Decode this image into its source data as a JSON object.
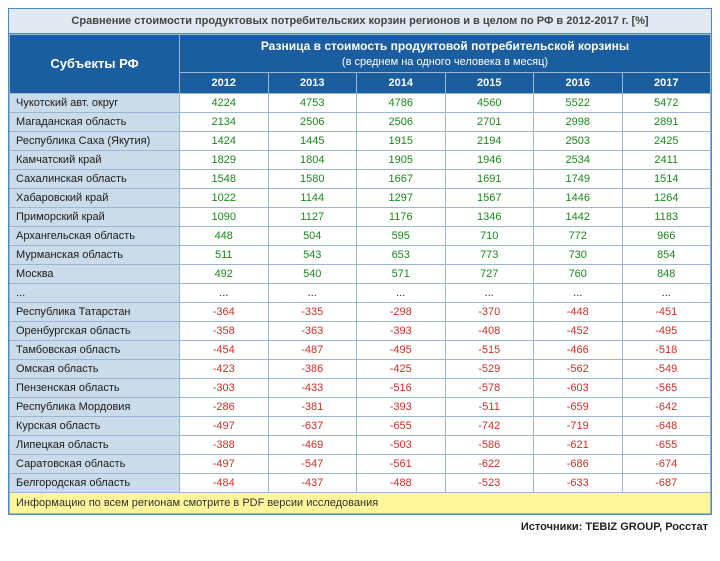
{
  "title": "Сравнение стоимости продуктовых потребительских корзин регионов и в целом по РФ в 2012-2017 г. [%]",
  "header": {
    "subjects": "Субъекты РФ",
    "diff_line1": "Разница в стоимость продуктовой потребительской корзины",
    "diff_line2": "(в среднем на одного человека в месяц)",
    "years": [
      "2012",
      "2013",
      "2014",
      "2015",
      "2016",
      "2017"
    ]
  },
  "rows_pos": [
    {
      "name": "Чукотский авт. округ",
      "v": [
        "4224",
        "4753",
        "4786",
        "4560",
        "5522",
        "5472"
      ]
    },
    {
      "name": "Магаданская область",
      "v": [
        "2134",
        "2506",
        "2506",
        "2701",
        "2998",
        "2891"
      ]
    },
    {
      "name": "Республика Саха (Якутия)",
      "v": [
        "1424",
        "1445",
        "1915",
        "2194",
        "2503",
        "2425"
      ]
    },
    {
      "name": "Камчатский край",
      "v": [
        "1829",
        "1804",
        "1905",
        "1946",
        "2534",
        "2411"
      ]
    },
    {
      "name": "Сахалинская область",
      "v": [
        "1548",
        "1580",
        "1667",
        "1691",
        "1749",
        "1514"
      ]
    },
    {
      "name": "Хабаровский край",
      "v": [
        "1022",
        "1144",
        "1297",
        "1567",
        "1446",
        "1264"
      ]
    },
    {
      "name": "Приморский край",
      "v": [
        "1090",
        "1127",
        "1176",
        "1346",
        "1442",
        "1183"
      ]
    },
    {
      "name": "Архангельская область",
      "v": [
        "448",
        "504",
        "595",
        "710",
        "772",
        "966"
      ]
    },
    {
      "name": "Мурманская область",
      "v": [
        "511",
        "543",
        "653",
        "773",
        "730",
        "854"
      ]
    },
    {
      "name": "Москва",
      "v": [
        "492",
        "540",
        "571",
        "727",
        "760",
        "848"
      ]
    }
  ],
  "ellipsis": {
    "name": "...",
    "cell": "..."
  },
  "rows_neg": [
    {
      "name": "Республика Татарстан",
      "v": [
        "-364",
        "-335",
        "-298",
        "-370",
        "-448",
        "-451"
      ]
    },
    {
      "name": "Оренбургская область",
      "v": [
        "-358",
        "-363",
        "-393",
        "-408",
        "-452",
        "-495"
      ]
    },
    {
      "name": "Тамбовская область",
      "v": [
        "-454",
        "-487",
        "-495",
        "-515",
        "-466",
        "-518"
      ]
    },
    {
      "name": "Омская область",
      "v": [
        "-423",
        "-386",
        "-425",
        "-529",
        "-562",
        "-549"
      ]
    },
    {
      "name": "Пензенская область",
      "v": [
        "-303",
        "-433",
        "-516",
        "-578",
        "-603",
        "-565"
      ]
    },
    {
      "name": "Республика Мордовия",
      "v": [
        "-286",
        "-381",
        "-393",
        "-511",
        "-659",
        "-642"
      ]
    },
    {
      "name": "Курская область",
      "v": [
        "-497",
        "-637",
        "-655",
        "-742",
        "-719",
        "-648"
      ]
    },
    {
      "name": "Липецкая область",
      "v": [
        "-388",
        "-469",
        "-503",
        "-586",
        "-621",
        "-655"
      ]
    },
    {
      "name": "Саратовская область",
      "v": [
        "-497",
        "-547",
        "-561",
        "-622",
        "-686",
        "-674"
      ]
    },
    {
      "name": "Белгородская область",
      "v": [
        "-484",
        "-437",
        "-488",
        "-523",
        "-633",
        "-687"
      ]
    }
  ],
  "note": "Информацию по всем регионам смотрите в PDF версии исследования",
  "sources": "Источники: TEBIZ GROUP, Росстат",
  "colors": {
    "header_bg": "#1b5ea0",
    "name_bg": "#cadbe9",
    "pos_text": "#1a8a1a",
    "neg_text": "#cc3126",
    "note_bg": "#fff59b",
    "border": "#9bb6d3"
  }
}
